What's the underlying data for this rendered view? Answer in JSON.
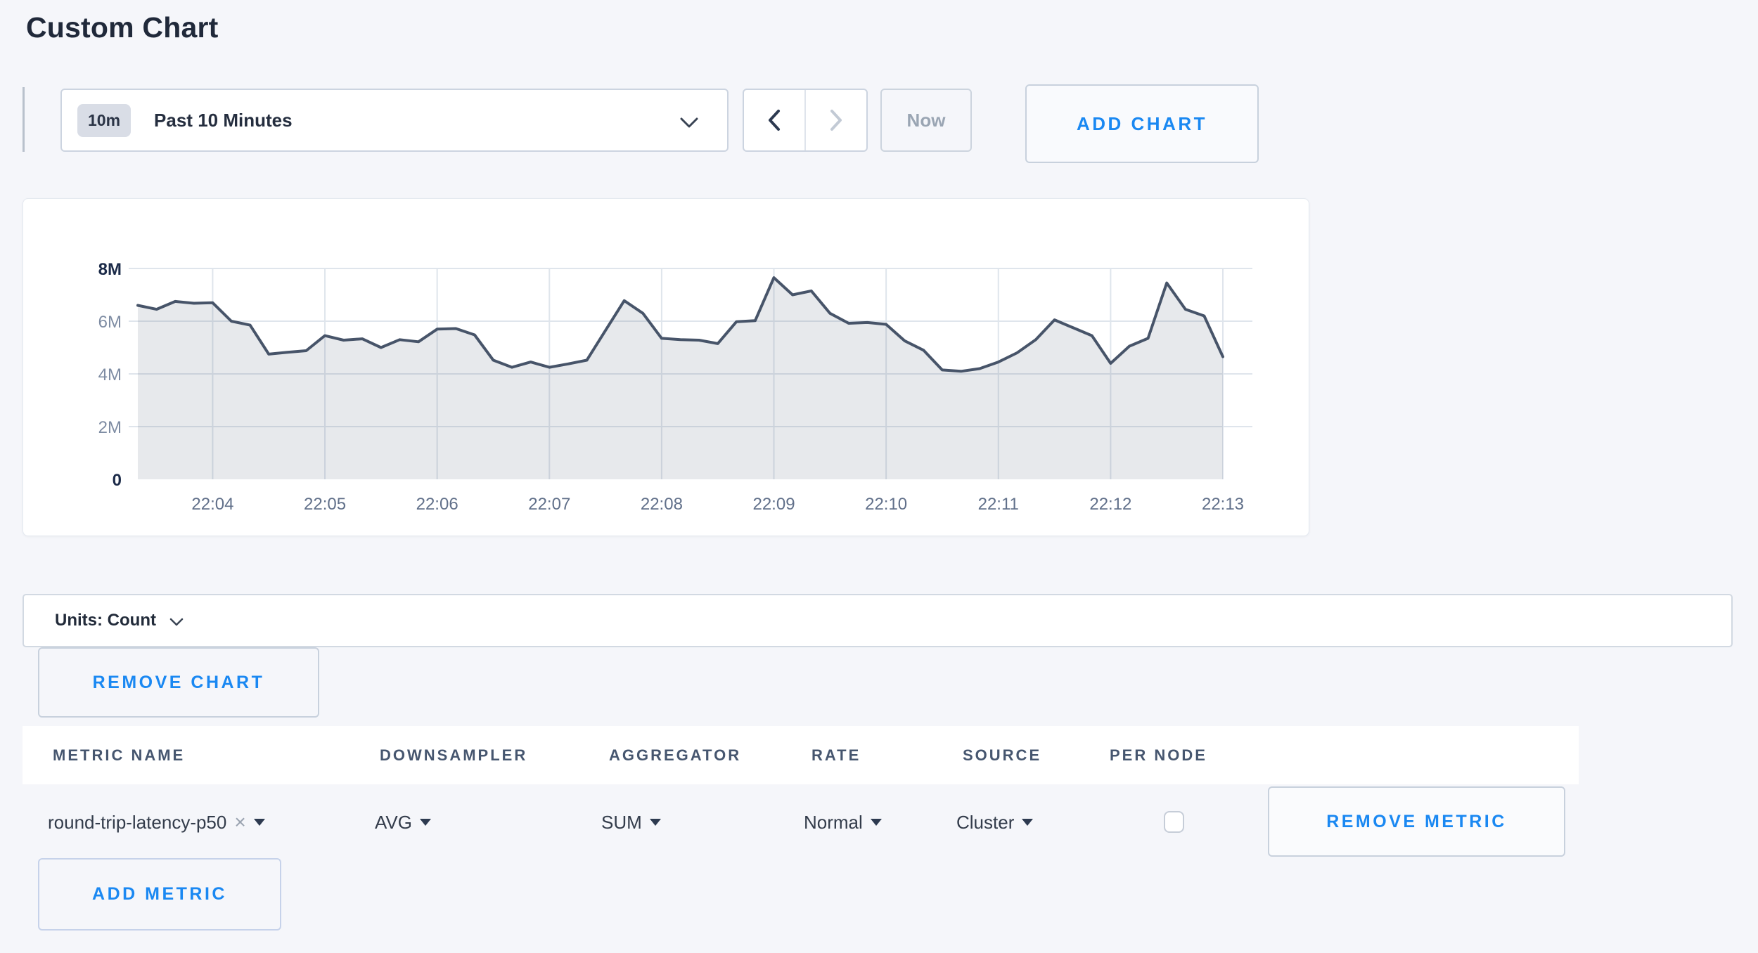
{
  "title": "Custom Chart",
  "toolbar": {
    "time_badge": "10m",
    "time_label": "Past 10 Minutes",
    "now_label": "Now",
    "add_chart_label": "ADD CHART",
    "accent_color": "#1a88f2",
    "prev_enabled": true,
    "next_enabled": false
  },
  "units_bar": {
    "label": "Units: Count"
  },
  "remove_chart_label": "REMOVE CHART",
  "add_metric_label": "ADD METRIC",
  "table": {
    "columns": [
      "METRIC NAME",
      "DOWNSAMPLER",
      "AGGREGATOR",
      "RATE",
      "SOURCE",
      "PER NODE"
    ],
    "row": {
      "metric_name": "round-trip-latency-p50",
      "clear_icon": "×",
      "downsampler": "AVG",
      "aggregator": "SUM",
      "rate": "Normal",
      "source": "Cluster",
      "per_node_checked": false,
      "remove_label": "REMOVE METRIC"
    }
  },
  "chart_data": {
    "type": "area",
    "title": "",
    "xlabel": "",
    "ylabel": "",
    "ylim": [
      0,
      8000000
    ],
    "grid": true,
    "legend": "none",
    "line_color": "#475469",
    "fill_color": "rgba(71,84,109,0.13)",
    "grid_color": "#dfe5ec",
    "t0": 200,
    "dt": 10,
    "x_ticks": [
      {
        "label": "22:04",
        "t": 240
      },
      {
        "label": "22:05",
        "t": 300
      },
      {
        "label": "22:06",
        "t": 360
      },
      {
        "label": "22:07",
        "t": 420
      },
      {
        "label": "22:08",
        "t": 480
      },
      {
        "label": "22:09",
        "t": 540
      },
      {
        "label": "22:10",
        "t": 600
      },
      {
        "label": "22:11",
        "t": 660
      },
      {
        "label": "22:12",
        "t": 720
      },
      {
        "label": "22:13",
        "t": 780
      }
    ],
    "y_ticks": [
      {
        "label": "8M",
        "v": 8000000,
        "emphasis": true
      },
      {
        "label": "6M",
        "v": 6000000,
        "emphasis": false
      },
      {
        "label": "4M",
        "v": 4000000,
        "emphasis": false
      },
      {
        "label": "2M",
        "v": 2000000,
        "emphasis": false
      },
      {
        "label": "0",
        "v": 0,
        "emphasis": true
      }
    ],
    "series": [
      {
        "name": "round-trip-latency-p50",
        "values": [
          6600000,
          6450000,
          6750000,
          6680000,
          6700000,
          6000000,
          5850000,
          4750000,
          4820000,
          4880000,
          5450000,
          5280000,
          5330000,
          5000000,
          5300000,
          5220000,
          5700000,
          5720000,
          5480000,
          4520000,
          4250000,
          4450000,
          4250000,
          4380000,
          4520000,
          5650000,
          6780000,
          6300000,
          5350000,
          5300000,
          5280000,
          5150000,
          5980000,
          6020000,
          7650000,
          7000000,
          7150000,
          6300000,
          5920000,
          5950000,
          5880000,
          5250000,
          4900000,
          4150000,
          4100000,
          4200000,
          4450000,
          4800000,
          5300000,
          6050000,
          5750000,
          5450000,
          4400000,
          5050000,
          5350000,
          7450000,
          6450000,
          6200000,
          4650000
        ]
      }
    ]
  }
}
